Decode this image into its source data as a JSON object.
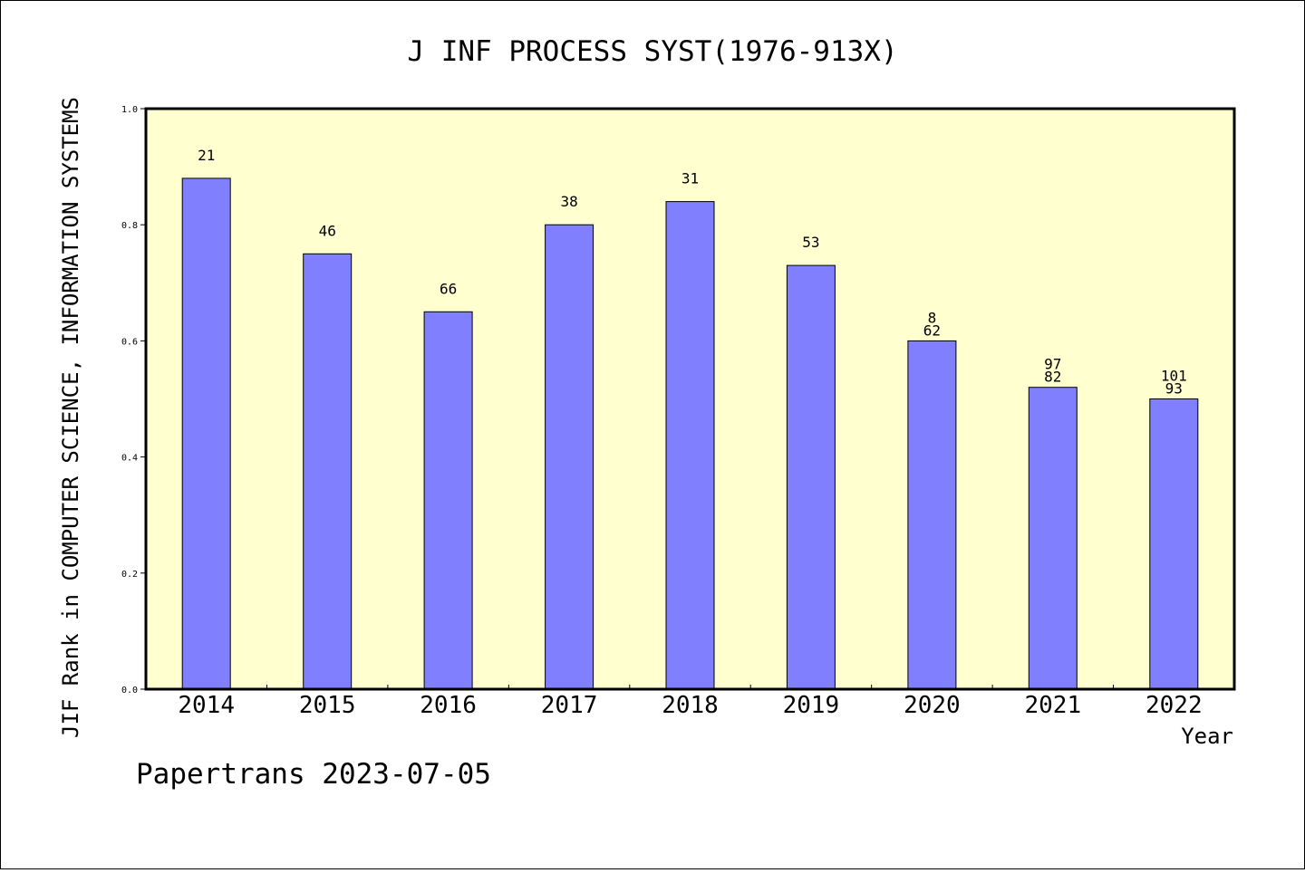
{
  "chart_data": {
    "type": "bar",
    "title": "J INF PROCESS SYST(1976-913X)",
    "xlabel": "Year",
    "ylabel": "JIF Rank in COMPUTER SCIENCE, INFORMATION SYSTEMS",
    "ylim": [
      0,
      1.0
    ],
    "yticks": [
      "0.0",
      "0.2",
      "0.4",
      "0.6",
      "0.8",
      "1.0"
    ],
    "categories": [
      "2014",
      "2015",
      "2016",
      "2017",
      "2018",
      "2019",
      "2020",
      "2021",
      "2022"
    ],
    "values": [
      0.88,
      0.75,
      0.65,
      0.8,
      0.84,
      0.73,
      0.6,
      0.52,
      0.5
    ],
    "bar_labels": [
      [
        "21"
      ],
      [
        "46"
      ],
      [
        "66"
      ],
      [
        "38"
      ],
      [
        "31"
      ],
      [
        "53"
      ],
      [
        "8",
        "62"
      ],
      [
        "97",
        "82"
      ],
      [
        "101",
        "93"
      ]
    ],
    "bar_color": "#8080ff",
    "plot_background": "#ffffd0",
    "grid": false,
    "legend": "none"
  },
  "footer": {
    "credit": "Papertrans 2023-07-05"
  }
}
